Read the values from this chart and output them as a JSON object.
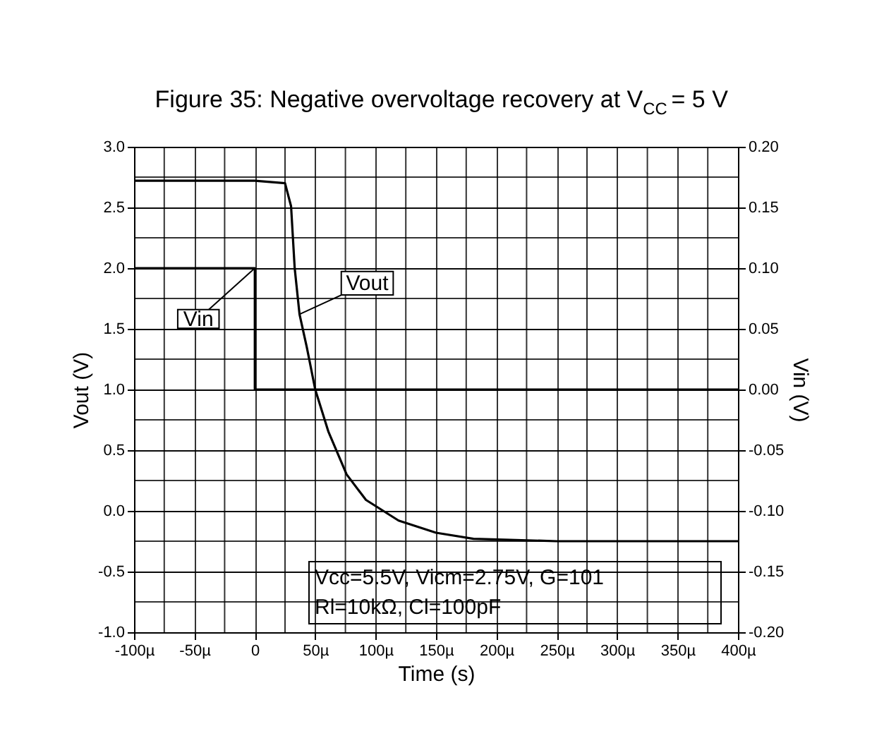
{
  "chart_data": {
    "type": "line",
    "title": "Figure 35: Negative overvoltage recovery at V$_{CC}$ = 5 V",
    "xlabel": "Time (s)",
    "ylabel": "Vout (V)",
    "y2label": "Vin (V)",
    "series": [
      {
        "name": "Vout",
        "color": "#000000",
        "x": [
          -100,
          0,
          25,
          30,
          33,
          37,
          43,
          50,
          61,
          76,
          92,
          119,
          150,
          181,
          216,
          250,
          400
        ],
        "values": [
          2.72,
          2.72,
          2.7,
          2.51,
          2.0,
          1.62,
          1.35,
          1.0,
          0.65,
          0.3,
          0.09,
          -0.08,
          -0.18,
          -0.23,
          -0.24,
          -0.25,
          -0.25
        ]
      },
      {
        "name": "Vin",
        "color": "#000000",
        "axis": "y2",
        "x": [
          -100,
          0,
          0,
          400
        ],
        "values": [
          0.1,
          0.1,
          0.0,
          0.0
        ]
      }
    ],
    "annotations": [
      "Vcc=5.5V, Vicm=2.75V, G=101\nRl=10kΩ, Cl=100pF"
    ],
    "xlim": [
      -100,
      400
    ],
    "xticks": [
      {
        "value": -100,
        "label": "-100µ"
      },
      {
        "value": -75,
        "label": null
      },
      {
        "value": -50,
        "label": "-50µ"
      },
      {
        "value": -25,
        "label": null
      },
      {
        "value": 0,
        "label": "0"
      },
      {
        "value": 25,
        "label": null
      },
      {
        "value": 50,
        "label": "50µ"
      },
      {
        "value": 75,
        "label": null
      },
      {
        "value": 100,
        "label": "100µ"
      },
      {
        "value": 125,
        "label": null
      },
      {
        "value": 150,
        "label": "150µ"
      },
      {
        "value": 175,
        "label": null
      },
      {
        "value": 200,
        "label": "200µ"
      },
      {
        "value": 225,
        "label": null
      },
      {
        "value": 250,
        "label": "250µ"
      },
      {
        "value": 275,
        "label": null
      },
      {
        "value": 300,
        "label": "300µ"
      },
      {
        "value": 325,
        "label": null
      },
      {
        "value": 350,
        "label": "350µ"
      },
      {
        "value": 375,
        "label": null
      },
      {
        "value": 400,
        "label": "400µ"
      }
    ],
    "ylim": [
      -1.0,
      3.0
    ],
    "yticks": [
      {
        "value": -1,
        "label": "-1.0"
      },
      {
        "value": -0.75,
        "label": null
      },
      {
        "value": -0.5,
        "label": "-0.5"
      },
      {
        "value": -0.25,
        "label": null
      },
      {
        "value": 0,
        "label": "0.0"
      },
      {
        "value": 0.25,
        "label": null
      },
      {
        "value": 0.5,
        "label": "0.5"
      },
      {
        "value": 0.75,
        "label": null
      },
      {
        "value": 1,
        "label": "1.0"
      },
      {
        "value": 1.25,
        "label": null
      },
      {
        "value": 1.5,
        "label": "1.5"
      },
      {
        "value": 1.75,
        "label": null
      },
      {
        "value": 2,
        "label": "2.0"
      },
      {
        "value": 2.25,
        "label": null
      },
      {
        "value": 2.5,
        "label": "2.5"
      },
      {
        "value": 2.75,
        "label": null
      },
      {
        "value": 3,
        "label": "3.0"
      }
    ],
    "y2lim": [
      -0.2,
      0.2
    ],
    "y2ticks": [
      {
        "value": -0.2,
        "label": "-0.20"
      },
      {
        "value": -0.15,
        "label": "-0.15"
      },
      {
        "value": -0.1,
        "label": "-0.10"
      },
      {
        "value": -0.05,
        "label": "-0.05"
      },
      {
        "value": 0,
        "label": "0.00"
      },
      {
        "value": 0.05,
        "label": "0.05"
      },
      {
        "value": 0.1,
        "label": "0.10"
      },
      {
        "value": 0.15,
        "label": "0.15"
      },
      {
        "value": 0.2,
        "label": "0.20"
      }
    ],
    "grid": true,
    "legend": false,
    "marker": "none",
    "line_style": "solid"
  }
}
